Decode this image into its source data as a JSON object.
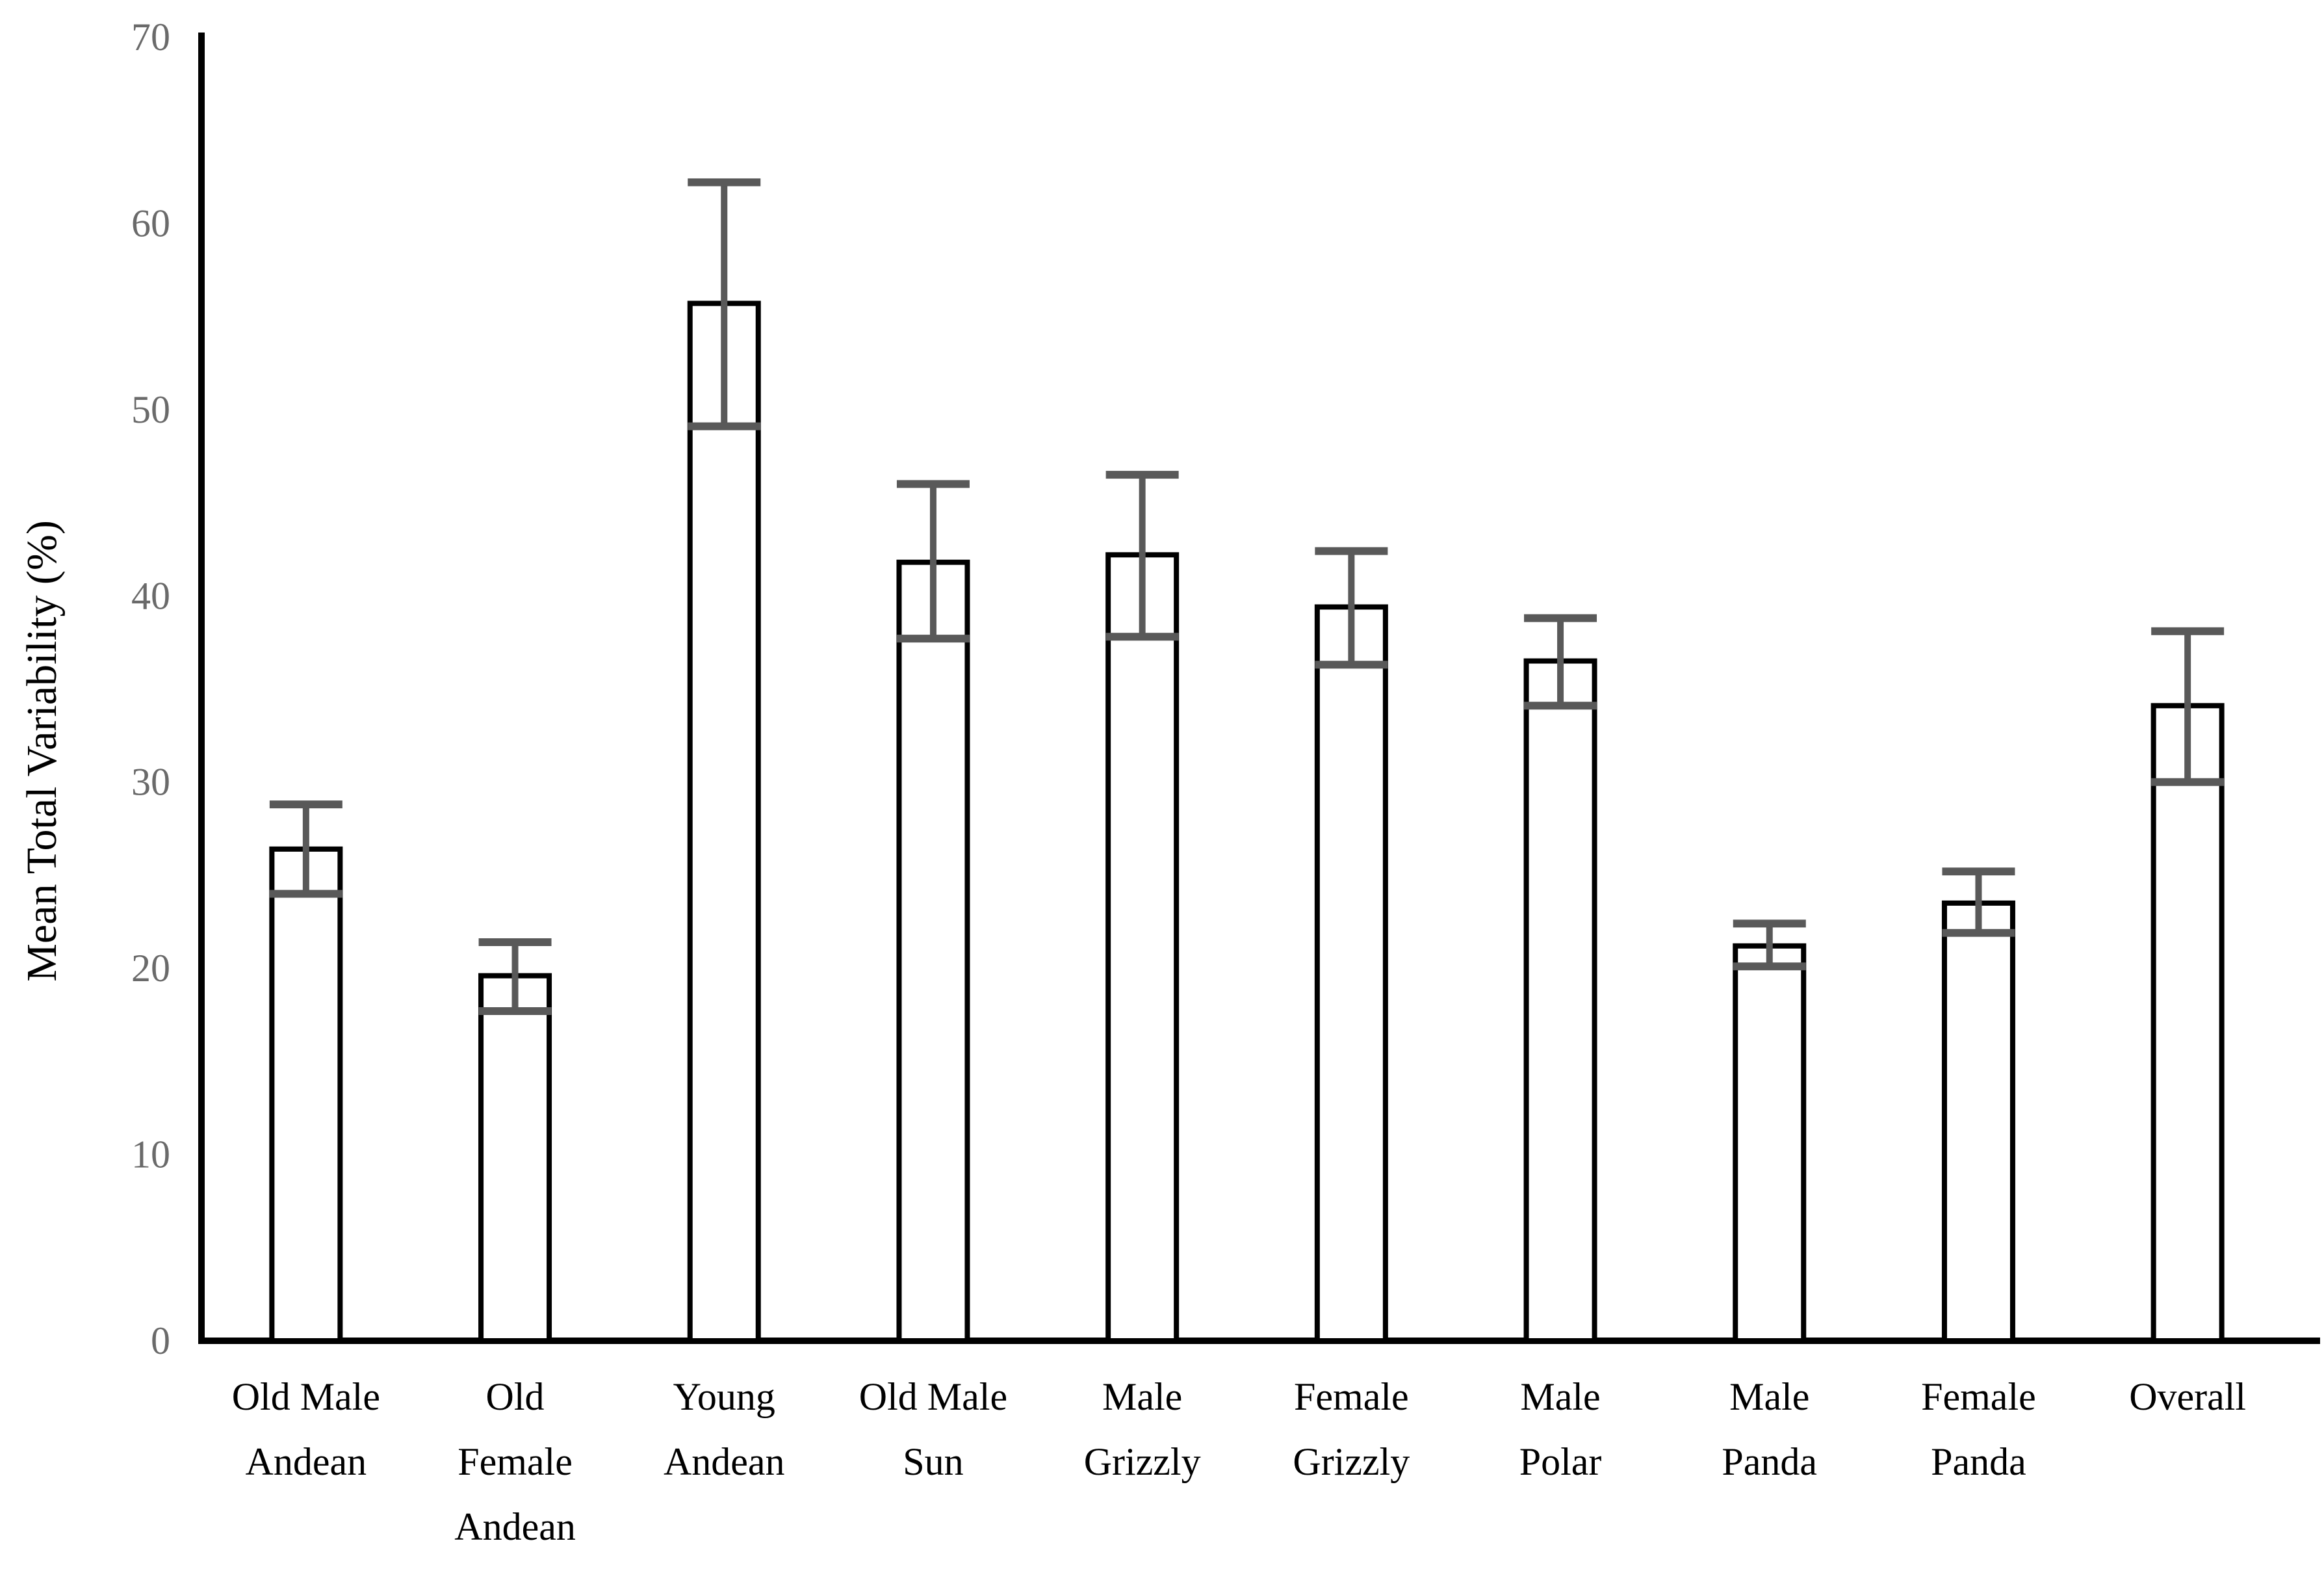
{
  "chart_data": {
    "type": "bar",
    "title": "",
    "xlabel": "",
    "ylabel": "Mean Total Variability (%)",
    "ylim": [
      0,
      70
    ],
    "ytick_step": 10,
    "ytick_labels": [
      "0",
      "10",
      "20",
      "30",
      "40",
      "50",
      "60",
      "70"
    ],
    "grid": false,
    "legend": false,
    "categories": [
      "Old Male Andean",
      "Old Female Andean",
      "Young Andean",
      "Old Male Sun",
      "Male Grizzly",
      "Female Grizzly",
      "Male Polar",
      "Male Panda",
      "Female Panda",
      "Overall"
    ],
    "category_label_lines": [
      [
        "Old Male",
        "Andean"
      ],
      [
        "Old",
        "Female",
        "Andean"
      ],
      [
        "Young",
        "Andean"
      ],
      [
        "Old Male",
        "Sun"
      ],
      [
        "Male",
        "Grizzly"
      ],
      [
        "Female",
        "Grizzly"
      ],
      [
        "Male",
        "Polar"
      ],
      [
        "Male",
        "Panda"
      ],
      [
        "Female",
        "Panda"
      ],
      [
        "Overall"
      ]
    ],
    "values": [
      26.4,
      19.6,
      55.7,
      41.8,
      42.2,
      39.4,
      36.5,
      21.2,
      23.5,
      34.1
    ],
    "error_upper": [
      28.8,
      21.4,
      62.2,
      46.0,
      46.5,
      42.4,
      38.8,
      22.4,
      25.2,
      38.1
    ],
    "error_lower": [
      24.0,
      17.7,
      49.1,
      37.7,
      37.8,
      36.3,
      34.1,
      20.1,
      21.9,
      30.0
    ],
    "bar_fill": "#ffffff",
    "bar_stroke": "#000000",
    "axis_color": "#000000",
    "error_bar_color": "#595959",
    "tick_label_color": "#6a6a6a",
    "category_label_color": "#000000",
    "ylabel_color": "#000000"
  }
}
